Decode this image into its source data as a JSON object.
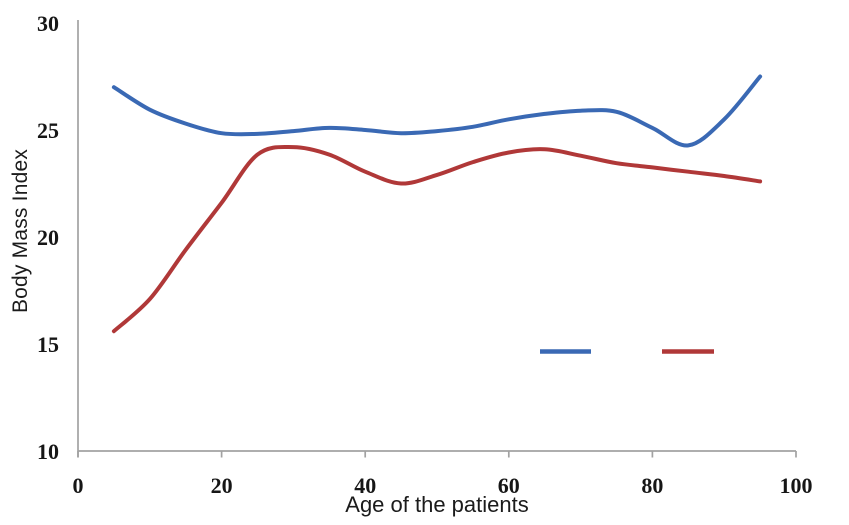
{
  "chart_data": {
    "type": "line",
    "title": "",
    "xlabel": "Age of the patients",
    "ylabel": "Body Mass Index",
    "xlim": [
      0,
      100
    ],
    "ylim": [
      10,
      30
    ],
    "x_ticks": [
      0,
      20,
      40,
      60,
      80,
      100
    ],
    "y_ticks": [
      10,
      15,
      20,
      25,
      30
    ],
    "grid": false,
    "smoothed": true,
    "axis_color": "#a2a2a2",
    "text_color": "#161616",
    "legend": {
      "position": "inside-lower-right",
      "text_labels_visible": false
    },
    "x": [
      5,
      10,
      15,
      20,
      25,
      30,
      35,
      40,
      45,
      50,
      55,
      60,
      65,
      70,
      75,
      80,
      85,
      90,
      95
    ],
    "series": [
      {
        "name": "blue-line",
        "color": "#3a69b4",
        "values": [
          27.0,
          25.95,
          25.3,
          24.85,
          24.82,
          24.95,
          25.1,
          25.0,
          24.85,
          24.95,
          25.15,
          25.5,
          25.75,
          25.9,
          25.85,
          25.1,
          24.28,
          25.5,
          27.5
        ]
      },
      {
        "name": "red-line",
        "color": "#b03838",
        "values": [
          15.6,
          17.1,
          19.4,
          21.6,
          23.85,
          24.2,
          23.85,
          23.05,
          22.5,
          22.9,
          23.5,
          23.95,
          24.1,
          23.8,
          23.45,
          23.25,
          23.05,
          22.85,
          22.6
        ]
      }
    ]
  }
}
